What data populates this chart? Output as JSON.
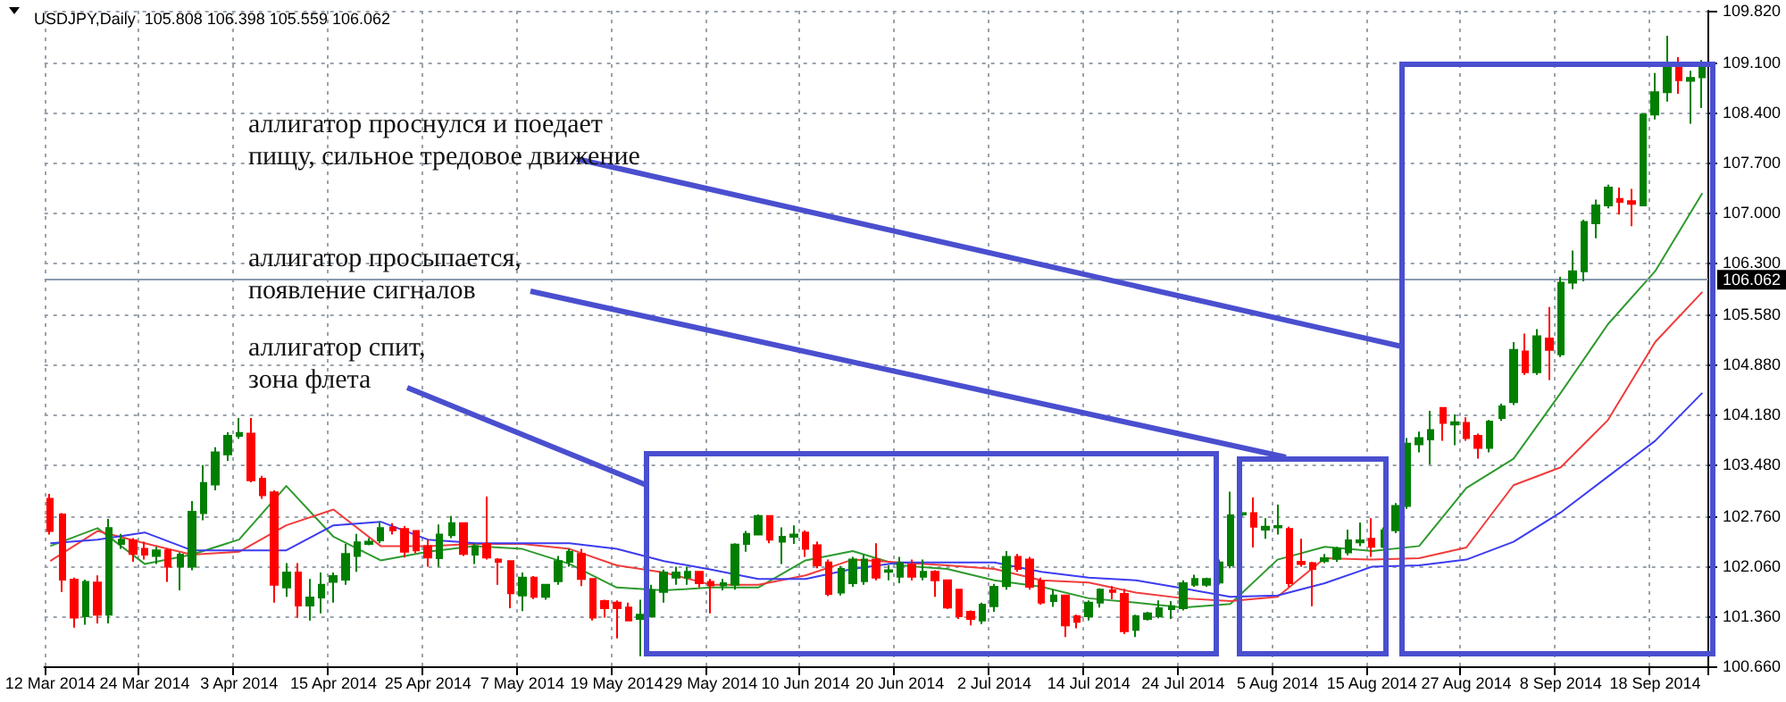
{
  "chart_data": {
    "type": "candlestick",
    "title": "USDJPY,Daily  105.808 106.398 105.559 106.062",
    "categories": [
      "12 Mar 2014",
      null,
      null,
      null,
      null,
      null,
      null,
      null,
      "24 Mar 2014",
      null,
      null,
      null,
      null,
      null,
      null,
      null,
      "3 Apr 2014",
      null,
      null,
      null,
      null,
      null,
      null,
      null,
      "15 Apr 2014",
      null,
      null,
      null,
      null,
      null,
      null,
      null,
      "25 Apr 2014",
      null,
      null,
      null,
      null,
      null,
      null,
      null,
      "7 May 2014",
      null,
      null,
      null,
      null,
      null,
      null,
      null,
      "19 May 2014",
      null,
      null,
      null,
      null,
      null,
      null,
      null,
      "29 May 2014",
      null,
      null,
      null,
      null,
      null,
      null,
      null,
      "10 Jun 2014",
      null,
      null,
      null,
      null,
      null,
      null,
      null,
      "20 Jun 2014",
      null,
      null,
      null,
      null,
      null,
      null,
      null,
      "2 Jul 2014",
      null,
      null,
      null,
      null,
      null,
      null,
      null,
      "14 Jul 2014",
      null,
      null,
      null,
      null,
      null,
      null,
      null,
      "24 Jul 2014",
      null,
      null,
      null,
      null,
      null,
      null,
      null,
      "5 Aug 2014",
      null,
      null,
      null,
      null,
      null,
      null,
      null,
      "15 Aug 2014",
      null,
      null,
      null,
      null,
      null,
      null,
      null,
      "27 Aug 2014",
      null,
      null,
      null,
      null,
      null,
      null,
      null,
      "8 Sep 2014",
      null,
      null,
      null,
      null,
      null,
      null,
      null,
      "18 Sep 2014",
      null,
      null,
      null,
      null
    ],
    "ohlc": [
      [
        103.0,
        103.07,
        102.5,
        102.55
      ],
      [
        102.78,
        102.8,
        101.7,
        101.87
      ],
      [
        101.87,
        101.9,
        101.2,
        101.34
      ],
      [
        101.36,
        101.87,
        101.24,
        101.84
      ],
      [
        101.83,
        101.93,
        101.26,
        101.38
      ],
      [
        101.38,
        102.72,
        101.26,
        102.59
      ],
      [
        102.37,
        102.51,
        102.3,
        102.43
      ],
      [
        102.42,
        102.45,
        102.12,
        102.23
      ],
      [
        102.3,
        102.4,
        102.15,
        102.22
      ],
      [
        102.2,
        102.33,
        102.09,
        102.28
      ],
      [
        102.28,
        102.3,
        101.84,
        102.05
      ],
      [
        102.05,
        102.25,
        101.72,
        102.22
      ],
      [
        102.05,
        102.97,
        102.0,
        102.82
      ],
      [
        102.8,
        103.47,
        102.7,
        103.22
      ],
      [
        103.2,
        103.72,
        103.12,
        103.65
      ],
      [
        103.62,
        103.93,
        103.53,
        103.88
      ],
      [
        103.88,
        104.13,
        103.84,
        103.92
      ],
      [
        103.91,
        104.13,
        103.23,
        103.26
      ],
      [
        103.28,
        103.32,
        103.0,
        103.05
      ],
      [
        103.09,
        103.12,
        101.55,
        101.8
      ],
      [
        101.76,
        102.1,
        101.63,
        101.97
      ],
      [
        101.97,
        102.1,
        101.34,
        101.51
      ],
      [
        101.51,
        101.88,
        101.3,
        101.62
      ],
      [
        101.62,
        101.97,
        101.4,
        101.8
      ],
      [
        101.84,
        101.97,
        101.55,
        101.92
      ],
      [
        101.87,
        102.37,
        101.8,
        102.23
      ],
      [
        102.2,
        102.51,
        101.98,
        102.39
      ],
      [
        102.37,
        102.45,
        102.35,
        102.4
      ],
      [
        102.42,
        102.68,
        102.38,
        102.59
      ],
      [
        102.6,
        102.66,
        102.5,
        102.56
      ],
      [
        102.58,
        102.62,
        102.18,
        102.26
      ],
      [
        102.55,
        102.56,
        102.24,
        102.28
      ],
      [
        102.34,
        102.43,
        102.05,
        102.18
      ],
      [
        102.17,
        102.64,
        102.05,
        102.5
      ],
      [
        102.49,
        102.76,
        102.45,
        102.66
      ],
      [
        102.66,
        102.67,
        102.2,
        102.23
      ],
      [
        102.22,
        102.38,
        102.09,
        102.34
      ],
      [
        102.37,
        103.03,
        102.15,
        102.18
      ],
      [
        102.15,
        102.17,
        101.8,
        102.12
      ],
      [
        102.13,
        102.14,
        101.47,
        101.68
      ],
      [
        101.65,
        101.97,
        101.43,
        101.9
      ],
      [
        101.9,
        101.92,
        101.6,
        101.63
      ],
      [
        101.63,
        101.8,
        101.59,
        101.8
      ],
      [
        101.85,
        102.2,
        101.8,
        102.13
      ],
      [
        102.12,
        102.3,
        102.05,
        102.26
      ],
      [
        102.23,
        102.3,
        101.78,
        101.88
      ],
      [
        101.88,
        101.88,
        101.3,
        101.34
      ],
      [
        101.57,
        101.59,
        101.34,
        101.47
      ],
      [
        101.55,
        101.58,
        101.05,
        101.47
      ],
      [
        101.48,
        101.55,
        101.3,
        101.3
      ],
      [
        101.32,
        101.59,
        100.8,
        101.38
      ],
      [
        101.36,
        101.8,
        101.34,
        101.72
      ],
      [
        101.7,
        102.01,
        101.55,
        101.97
      ],
      [
        101.9,
        102.05,
        101.8,
        101.97
      ],
      [
        101.9,
        102.05,
        101.8,
        101.98
      ],
      [
        101.98,
        101.99,
        101.76,
        101.82
      ],
      [
        101.84,
        101.88,
        101.4,
        101.79
      ],
      [
        101.79,
        101.88,
        101.72,
        101.82
      ],
      [
        101.8,
        102.38,
        101.73,
        102.36
      ],
      [
        102.37,
        102.55,
        102.26,
        102.51
      ],
      [
        102.5,
        102.78,
        102.49,
        102.76
      ],
      [
        102.76,
        102.76,
        102.38,
        102.43
      ],
      [
        102.4,
        102.6,
        102.09,
        102.47
      ],
      [
        102.47,
        102.63,
        102.37,
        102.5
      ],
      [
        102.53,
        102.56,
        102.19,
        102.3
      ],
      [
        102.35,
        102.4,
        102.03,
        102.07
      ],
      [
        102.11,
        102.15,
        101.64,
        101.67
      ],
      [
        101.69,
        102.06,
        101.65,
        102.02
      ],
      [
        101.82,
        102.19,
        101.77,
        102.15
      ],
      [
        101.85,
        102.22,
        101.8,
        102.15
      ],
      [
        102.15,
        102.38,
        101.86,
        101.9
      ],
      [
        101.98,
        102.07,
        101.86,
        102.0
      ],
      [
        101.91,
        102.19,
        101.82,
        102.1
      ],
      [
        102.08,
        102.15,
        101.86,
        101.91
      ],
      [
        101.91,
        102.15,
        101.86,
        101.98
      ],
      [
        101.98,
        102.0,
        101.63,
        101.86
      ],
      [
        101.86,
        101.86,
        101.46,
        101.48
      ],
      [
        101.73,
        101.73,
        101.32,
        101.36
      ],
      [
        101.42,
        101.44,
        101.23,
        101.32
      ],
      [
        101.3,
        101.55,
        101.25,
        101.52
      ],
      [
        101.5,
        101.81,
        101.42,
        101.77
      ],
      [
        101.78,
        102.27,
        101.73,
        102.19
      ],
      [
        102.19,
        102.23,
        101.98,
        102.02
      ],
      [
        102.15,
        102.19,
        101.73,
        101.77
      ],
      [
        101.85,
        101.9,
        101.52,
        101.55
      ],
      [
        101.57,
        101.73,
        101.49,
        101.65
      ],
      [
        101.65,
        101.65,
        101.07,
        101.23
      ],
      [
        101.36,
        101.38,
        101.19,
        101.28
      ],
      [
        101.36,
        101.58,
        101.3,
        101.55
      ],
      [
        101.55,
        101.75,
        101.48,
        101.73
      ],
      [
        101.72,
        101.78,
        101.6,
        101.7
      ],
      [
        101.67,
        101.74,
        101.11,
        101.15
      ],
      [
        101.17,
        101.38,
        101.07,
        101.36
      ],
      [
        101.32,
        101.42,
        101.3,
        101.4
      ],
      [
        101.36,
        101.58,
        101.33,
        101.47
      ],
      [
        101.46,
        101.57,
        101.32,
        101.5
      ],
      [
        101.47,
        101.86,
        101.44,
        101.82
      ],
      [
        101.8,
        101.94,
        101.77,
        101.88
      ],
      [
        101.8,
        101.9,
        101.77,
        101.88
      ],
      [
        101.83,
        102.15,
        101.8,
        102.11
      ],
      [
        102.07,
        103.1,
        102.03,
        102.77
      ],
      [
        102.78,
        102.81,
        102.76,
        102.8
      ],
      [
        102.8,
        103.02,
        102.32,
        102.61
      ],
      [
        102.57,
        102.73,
        102.44,
        102.61
      ],
      [
        102.6,
        102.92,
        102.5,
        102.62
      ],
      [
        102.58,
        102.61,
        101.77,
        101.82
      ],
      [
        102.12,
        102.44,
        102.05,
        102.09
      ],
      [
        102.1,
        102.12,
        101.5,
        102.02
      ],
      [
        102.13,
        102.23,
        102.1,
        102.17
      ],
      [
        102.16,
        102.33,
        102.12,
        102.3
      ],
      [
        102.25,
        102.57,
        102.21,
        102.42
      ],
      [
        102.39,
        102.67,
        102.34,
        102.42
      ],
      [
        102.44,
        102.73,
        102.19,
        102.33
      ],
      [
        102.33,
        102.6,
        102.31,
        102.56
      ],
      [
        102.56,
        102.94,
        102.52,
        102.9
      ],
      [
        102.9,
        103.85,
        102.86,
        103.77
      ],
      [
        103.76,
        103.94,
        103.65,
        103.85
      ],
      [
        103.83,
        104.23,
        103.48,
        103.96
      ],
      [
        104.27,
        104.27,
        103.81,
        104.06
      ],
      [
        104.04,
        104.18,
        103.75,
        104.07
      ],
      [
        104.06,
        104.14,
        103.81,
        103.85
      ],
      [
        103.88,
        103.91,
        103.56,
        103.71
      ],
      [
        103.71,
        104.1,
        103.65,
        104.08
      ],
      [
        104.13,
        104.33,
        104.09,
        104.29
      ],
      [
        104.35,
        105.19,
        104.31,
        105.08
      ],
      [
        105.06,
        105.31,
        104.73,
        104.77
      ],
      [
        104.77,
        105.37,
        104.73,
        105.27
      ],
      [
        105.24,
        105.68,
        104.66,
        105.08
      ],
      [
        105.02,
        106.1,
        104.98,
        106.02
      ],
      [
        106.02,
        106.47,
        105.93,
        106.18
      ],
      [
        106.18,
        106.9,
        106.04,
        106.87
      ],
      [
        106.85,
        107.18,
        106.64,
        107.1
      ],
      [
        107.1,
        107.39,
        107.06,
        107.35
      ],
      [
        107.19,
        107.35,
        106.97,
        107.15
      ],
      [
        107.16,
        107.33,
        106.81,
        107.12
      ],
      [
        107.1,
        108.39,
        107.09,
        108.37
      ],
      [
        108.37,
        108.95,
        108.3,
        108.68
      ],
      [
        108.68,
        109.47,
        108.55,
        109.07
      ],
      [
        109.07,
        109.17,
        108.66,
        108.85
      ],
      [
        108.84,
        108.98,
        108.24,
        108.88
      ],
      [
        108.89,
        109.13,
        108.46,
        109.03
      ]
    ],
    "colors": [
      "#ff0000",
      "#ff0000",
      "#ff0000",
      "#007f00",
      "#ff0000",
      "#007f00",
      "#007f00",
      "#ff0000",
      "#ff0000",
      "#007f00",
      "#ff0000",
      "#007f00",
      "#007f00",
      "#007f00",
      "#007f00",
      "#007f00",
      "#007f00",
      "#ff0000",
      "#ff0000",
      "#ff0000",
      "#007f00",
      "#ff0000",
      "#007f00",
      "#007f00",
      "#007f00",
      "#007f00",
      "#007f00",
      "#007f00",
      "#007f00",
      "#ff0000",
      "#ff0000",
      "#ff0000",
      "#ff0000",
      "#007f00",
      "#007f00",
      "#ff0000",
      "#007f00",
      "#ff0000",
      "#ff0000",
      "#ff0000",
      "#007f00",
      "#ff0000",
      "#007f00",
      "#007f00",
      "#007f00",
      "#ff0000",
      "#ff0000",
      "#ff0000",
      "#ff0000",
      "#ff0000",
      "#007f00",
      "#007f00",
      "#007f00",
      "#007f00",
      "#007f00",
      "#ff0000",
      "#ff0000",
      "#007f00",
      "#007f00",
      "#007f00",
      "#007f00",
      "#ff0000",
      "#007f00",
      "#007f00",
      "#ff0000",
      "#ff0000",
      "#ff0000",
      "#007f00",
      "#007f00",
      "#007f00",
      "#ff0000",
      "#007f00",
      "#007f00",
      "#ff0000",
      "#007f00",
      "#ff0000",
      "#ff0000",
      "#ff0000",
      "#ff0000",
      "#007f00",
      "#007f00",
      "#007f00",
      "#ff0000",
      "#ff0000",
      "#ff0000",
      "#007f00",
      "#ff0000",
      "#ff0000",
      "#007f00",
      "#007f00",
      "#ff0000",
      "#ff0000",
      "#007f00",
      "#007f00",
      "#007f00",
      "#007f00",
      "#007f00",
      "#007f00",
      "#007f00",
      "#007f00",
      "#007f00",
      "#007f00",
      "#ff0000",
      "#007f00",
      "#007f00",
      "#ff0000",
      "#ff0000",
      "#ff0000",
      "#007f00",
      "#007f00",
      "#007f00",
      "#007f00",
      "#ff0000",
      "#007f00",
      "#007f00",
      "#007f00",
      "#007f00",
      "#007f00",
      "#ff0000",
      "#007f00",
      "#ff0000",
      "#ff0000",
      "#007f00",
      "#007f00",
      "#007f00",
      "#ff0000",
      "#007f00",
      "#ff0000",
      "#007f00",
      "#007f00",
      "#007f00",
      "#007f00",
      "#007f00",
      "#ff0000",
      "#ff0000",
      "#007f00",
      "#007f00",
      "#007f00",
      "#ff0000",
      "#007f00",
      "#007f00"
    ],
    "series": [
      {
        "type": "line",
        "color": "#2e9a2e",
        "values": [
          102.34,
          null,
          null,
          null,
          102.59,
          null,
          null,
          null,
          102.09,
          null,
          null,
          null,
          102.22,
          null,
          null,
          null,
          102.43,
          null,
          null,
          null,
          103.18,
          null,
          null,
          null,
          102.47,
          null,
          null,
          null,
          102.14,
          null,
          null,
          null,
          102.26,
          null,
          null,
          null,
          102.34,
          null,
          null,
          null,
          102.3,
          null,
          null,
          null,
          102.09,
          null,
          null,
          null,
          101.76,
          null,
          null,
          null,
          101.72,
          null,
          null,
          null,
          101.76,
          null,
          null,
          null,
          101.76,
          null,
          null,
          null,
          102.14,
          null,
          null,
          null,
          102.27,
          null,
          null,
          null,
          102.07,
          null,
          null,
          null,
          102.02,
          null,
          null,
          null,
          101.86,
          null,
          null,
          null,
          101.77,
          null,
          null,
          null,
          101.61,
          null,
          null,
          null,
          101.55,
          null,
          null,
          null,
          101.48,
          null,
          null,
          null,
          101.53,
          null,
          null,
          null,
          102.15,
          null,
          null,
          null,
          102.33,
          null,
          null,
          null,
          102.27,
          null,
          null,
          null,
          102.34,
          null,
          null,
          null,
          103.15,
          null,
          null,
          null,
          103.56,
          null,
          null,
          null,
          104.48,
          null,
          null,
          null,
          105.44,
          null,
          null,
          null,
          106.18,
          null,
          null,
          null,
          107.27
        ]
      },
      {
        "type": "line",
        "color": "#f03c3c",
        "values": [
          102.13,
          null,
          null,
          null,
          102.55,
          null,
          null,
          null,
          102.38,
          null,
          null,
          null,
          102.22,
          null,
          null,
          null,
          102.26,
          null,
          null,
          null,
          102.63,
          null,
          null,
          null,
          102.85,
          null,
          null,
          null,
          102.34,
          null,
          null,
          null,
          102.34,
          null,
          null,
          null,
          102.37,
          null,
          null,
          null,
          102.37,
          null,
          null,
          null,
          102.3,
          null,
          null,
          null,
          102.07,
          null,
          null,
          null,
          101.97,
          null,
          null,
          null,
          101.8,
          null,
          null,
          null,
          101.8,
          null,
          null,
          null,
          101.93,
          null,
          null,
          null,
          102.15,
          null,
          null,
          null,
          102.11,
          null,
          null,
          null,
          102.07,
          null,
          null,
          null,
          102.02,
          null,
          null,
          null,
          101.86,
          null,
          null,
          null,
          101.83,
          null,
          null,
          null,
          101.69,
          null,
          null,
          null,
          101.61,
          null,
          null,
          null,
          101.57,
          null,
          null,
          null,
          101.63,
          null,
          null,
          null,
          102.17,
          null,
          null,
          null,
          102.15,
          null,
          null,
          null,
          102.17,
          null,
          null,
          null,
          102.32,
          null,
          null,
          null,
          103.19,
          null,
          null,
          null,
          103.44,
          null,
          null,
          null,
          104.1,
          null,
          null,
          null,
          105.19,
          null,
          null,
          null,
          105.89
        ]
      },
      {
        "type": "line",
        "color": "#3c3cf0",
        "values": [
          102.38,
          null,
          null,
          null,
          102.43,
          null,
          null,
          null,
          102.53,
          null,
          null,
          null,
          102.28,
          null,
          null,
          null,
          102.28,
          null,
          null,
          null,
          102.28,
          null,
          null,
          null,
          102.63,
          null,
          null,
          null,
          102.68,
          null,
          null,
          null,
          102.43,
          null,
          null,
          null,
          102.38,
          null,
          null,
          null,
          102.38,
          null,
          null,
          null,
          102.38,
          null,
          null,
          null,
          102.3,
          null,
          null,
          null,
          102.13,
          null,
          null,
          null,
          102.01,
          null,
          null,
          null,
          101.88,
          null,
          null,
          null,
          101.88,
          null,
          null,
          null,
          102.02,
          null,
          null,
          null,
          102.11,
          null,
          null,
          null,
          102.11,
          null,
          null,
          null,
          102.11,
          null,
          null,
          null,
          101.98,
          null,
          null,
          null,
          101.9,
          null,
          null,
          null,
          101.86,
          null,
          null,
          null,
          101.75,
          null,
          null,
          null,
          101.63,
          null,
          null,
          null,
          101.65,
          null,
          null,
          null,
          101.82,
          null,
          null,
          null,
          102.05,
          null,
          null,
          null,
          102.07,
          null,
          null,
          null,
          102.15,
          null,
          null,
          null,
          102.4,
          null,
          null,
          null,
          102.81,
          null,
          null,
          null,
          103.31,
          null,
          null,
          null,
          103.81,
          null,
          null,
          null,
          104.48
        ]
      }
    ],
    "marker": "none",
    "ylim": [
      100.66,
      109.82
    ],
    "yticks": [
      {
        "value": 100.66,
        "label": "100.660"
      },
      {
        "value": 101.36,
        "label": "101.360"
      },
      {
        "value": 102.06,
        "label": "102.060"
      },
      {
        "value": 102.76,
        "label": "102.760"
      },
      {
        "value": 103.48,
        "label": "103.480"
      },
      {
        "value": 104.18,
        "label": "104.180"
      },
      {
        "value": 104.88,
        "label": "104.880"
      },
      {
        "value": 105.58,
        "label": "105.580"
      },
      {
        "value": 106.3,
        "label": "106.300"
      },
      {
        "value": 107.0,
        "label": "107.000"
      },
      {
        "value": 107.7,
        "label": "107.700"
      },
      {
        "value": 108.4,
        "label": "108.400"
      },
      {
        "value": 109.1,
        "label": "109.100"
      },
      {
        "value": 109.82,
        "label": "109.820"
      }
    ],
    "grid": true,
    "ref_lines": [
      {
        "axis": "y",
        "value": 106.062,
        "label": "106.062",
        "color": "#8a9bb0"
      }
    ],
    "annotations": [
      "аллигатор проснулся и поедает пищу, сильное тредовое движение",
      "аллигатор просыпается, появление сигналов",
      "аллигатор спит, зона флета"
    ]
  }
}
